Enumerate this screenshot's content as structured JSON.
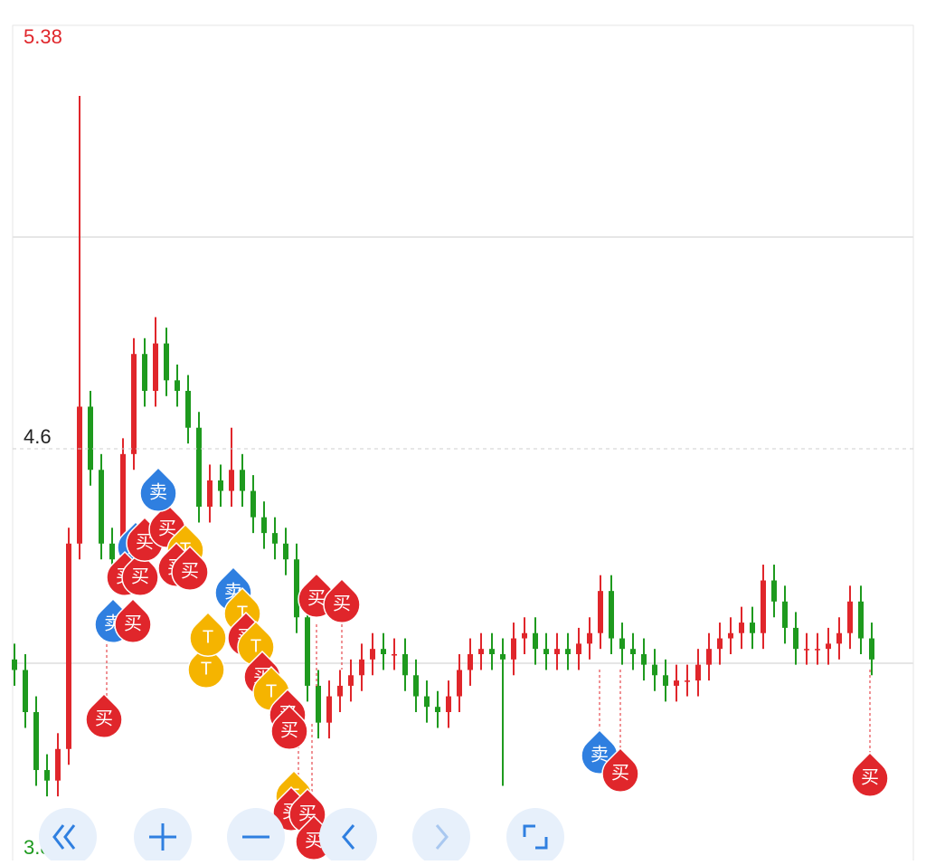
{
  "chart_data": {
    "type": "candlestick",
    "ylim": [
      3.82,
      5.38
    ],
    "yticks": [
      5.38,
      4.6,
      3.82
    ],
    "open": [
      4.2,
      4.18,
      4.1,
      3.99,
      3.97,
      4.03,
      4.42,
      4.68,
      4.56,
      4.42,
      4.39,
      4.59,
      4.78,
      4.71,
      4.8,
      4.73,
      4.71,
      4.64,
      4.49,
      4.54,
      4.52,
      4.56,
      4.52,
      4.47,
      4.44,
      4.42,
      4.39,
      4.28,
      4.15,
      4.08,
      4.13,
      4.15,
      4.17,
      4.2,
      4.22,
      4.21,
      4.21,
      4.17,
      4.13,
      4.11,
      4.1,
      4.13,
      4.18,
      4.21,
      4.22,
      4.21,
      4.2,
      4.24,
      4.25,
      4.22,
      4.21,
      4.22,
      4.21,
      4.23,
      4.25,
      4.33,
      4.24,
      4.22,
      4.21,
      4.19,
      4.17,
      4.15,
      4.16,
      4.16,
      4.19,
      4.22,
      4.24,
      4.25,
      4.27,
      4.25,
      4.35,
      4.31,
      4.26,
      4.22,
      4.22,
      4.22,
      4.23,
      4.25,
      4.31,
      4.24
    ],
    "high": [
      4.23,
      4.21,
      4.13,
      4.02,
      4.06,
      4.45,
      5.27,
      4.71,
      4.59,
      4.45,
      4.62,
      4.81,
      4.81,
      4.85,
      4.83,
      4.76,
      4.74,
      4.67,
      4.57,
      4.57,
      4.64,
      4.59,
      4.55,
      4.5,
      4.47,
      4.45,
      4.42,
      4.31,
      4.18,
      4.16,
      4.18,
      4.2,
      4.23,
      4.25,
      4.25,
      4.24,
      4.24,
      4.2,
      4.16,
      4.14,
      4.16,
      4.21,
      4.24,
      4.25,
      4.25,
      4.24,
      4.27,
      4.28,
      4.28,
      4.25,
      4.25,
      4.25,
      4.26,
      4.28,
      4.36,
      4.36,
      4.27,
      4.25,
      4.24,
      4.22,
      4.2,
      4.19,
      4.19,
      4.22,
      4.25,
      4.27,
      4.28,
      4.3,
      4.3,
      4.38,
      4.38,
      4.34,
      4.29,
      4.25,
      4.25,
      4.26,
      4.28,
      4.34,
      4.34,
      4.27
    ],
    "low": [
      4.15,
      4.07,
      3.96,
      3.94,
      3.94,
      4.0,
      4.39,
      4.53,
      4.39,
      4.36,
      4.36,
      4.56,
      4.68,
      4.68,
      4.7,
      4.68,
      4.61,
      4.46,
      4.46,
      4.49,
      4.49,
      4.49,
      4.44,
      4.41,
      4.39,
      4.36,
      4.25,
      4.12,
      4.05,
      4.05,
      4.1,
      4.12,
      4.14,
      4.17,
      4.18,
      4.18,
      4.14,
      4.1,
      4.08,
      4.07,
      4.07,
      4.1,
      4.15,
      4.18,
      4.18,
      3.96,
      4.17,
      4.21,
      4.19,
      4.18,
      4.18,
      4.18,
      4.18,
      4.2,
      4.22,
      4.21,
      4.19,
      4.18,
      4.16,
      4.14,
      4.12,
      4.12,
      4.13,
      4.13,
      4.16,
      4.19,
      4.21,
      4.22,
      4.22,
      4.22,
      4.28,
      4.23,
      4.19,
      4.19,
      4.19,
      4.19,
      4.2,
      4.22,
      4.21,
      4.17
    ],
    "close": [
      4.18,
      4.1,
      3.99,
      3.97,
      4.03,
      4.42,
      4.68,
      4.56,
      4.42,
      4.39,
      4.59,
      4.78,
      4.71,
      4.8,
      4.73,
      4.71,
      4.64,
      4.49,
      4.54,
      4.52,
      4.56,
      4.52,
      4.47,
      4.44,
      4.42,
      4.39,
      4.28,
      4.15,
      4.08,
      4.13,
      4.15,
      4.17,
      4.2,
      4.22,
      4.21,
      4.21,
      4.17,
      4.13,
      4.11,
      4.1,
      4.13,
      4.18,
      4.21,
      4.22,
      4.21,
      4.2,
      4.24,
      4.25,
      4.22,
      4.21,
      4.22,
      4.21,
      4.23,
      4.25,
      4.33,
      4.24,
      4.22,
      4.21,
      4.19,
      4.17,
      4.15,
      4.16,
      4.16,
      4.19,
      4.22,
      4.24,
      4.25,
      4.27,
      4.25,
      4.35,
      4.31,
      4.26,
      4.22,
      4.22,
      4.22,
      4.23,
      4.25,
      4.31,
      4.24,
      4.2
    ],
    "up_color": "#e0262b",
    "down_color": "#1e9a1e",
    "signals": [
      "买",
      "卖",
      "买",
      "卖",
      "买",
      "买",
      "买",
      "买",
      "卖",
      "T",
      "买",
      "买",
      "T",
      "T",
      "卖",
      "T",
      "买",
      "T",
      "买",
      "T",
      "买",
      "买",
      "买",
      "买",
      "T",
      "买",
      "买",
      "买",
      "卖",
      "买",
      "买"
    ]
  }
}
